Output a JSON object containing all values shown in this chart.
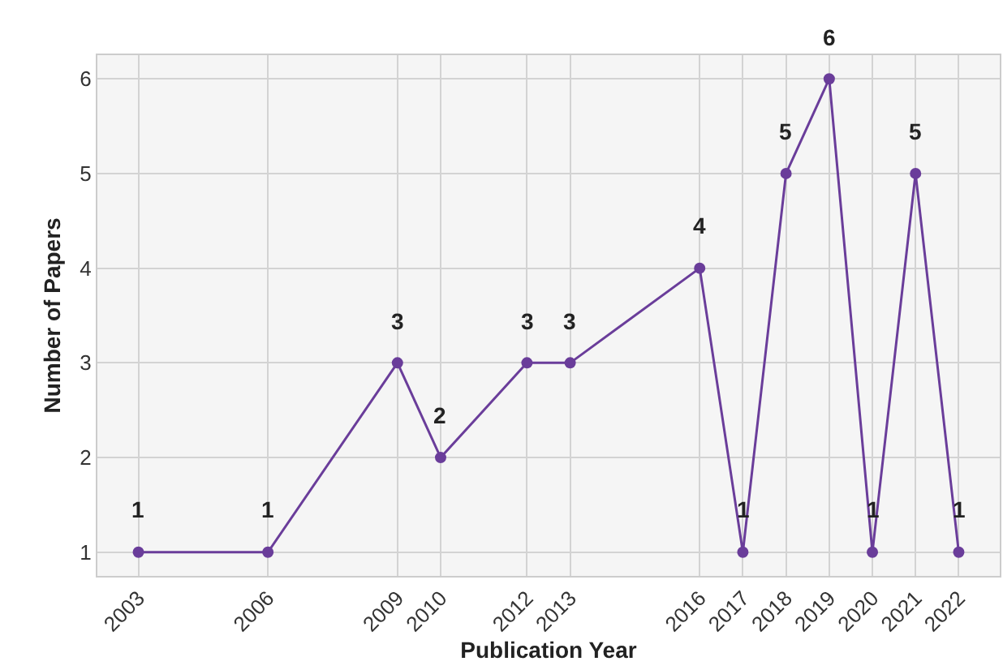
{
  "chart_data": {
    "type": "line",
    "xlabel": "Publication Year",
    "ylabel": "Number of Papers",
    "x": [
      2003,
      2006,
      2009,
      2010,
      2012,
      2013,
      2016,
      2017,
      2018,
      2019,
      2020,
      2021,
      2022
    ],
    "series": [
      {
        "color": "#6a3d9a",
        "values": [
          1,
          1,
          3,
          2,
          3,
          3,
          4,
          1,
          5,
          6,
          1,
          5,
          1
        ]
      }
    ],
    "xlim": [
      2002.05,
      2022.95
    ],
    "xticks": [
      2003,
      2006,
      2009,
      2010,
      2012,
      2013,
      2016,
      2017,
      2018,
      2019,
      2020,
      2021,
      2022
    ],
    "ylim": [
      0.75,
      6.25
    ],
    "yticks": [
      1,
      2,
      3,
      4,
      5,
      6
    ],
    "grid": true,
    "marker": "circle",
    "line_style": "solid",
    "data_labels": true
  }
}
